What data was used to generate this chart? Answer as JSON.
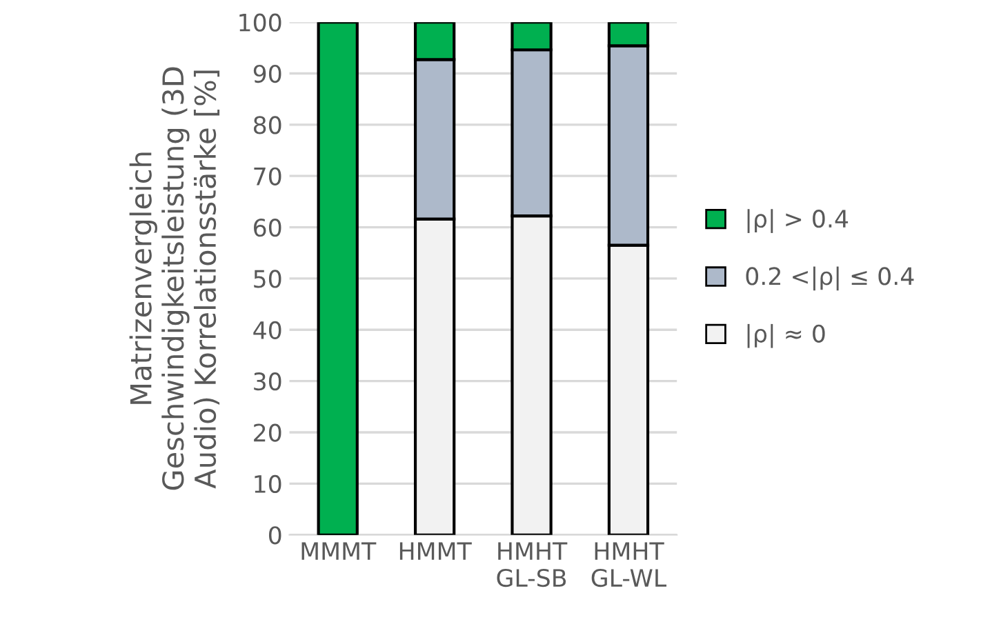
{
  "chart_data": {
    "type": "bar",
    "stacked": true,
    "ylabel": "Matrizenvergleich\nGeschwindigkeitsleistung (3D\nAudio) Korrelationsstärke [%]",
    "categories": [
      "MMMT",
      "HMMT",
      "HMHT\nGL-SB",
      "HMHT\nGL-WL"
    ],
    "series": [
      {
        "name": "|ρ| ≈ 0",
        "color": "#f2f2f2",
        "values": [
          0,
          61.6,
          62.2,
          56.5
        ]
      },
      {
        "name": "0.2 <|ρ| ≤ 0.4",
        "color": "#adb9ca",
        "values": [
          0,
          31.1,
          32.4,
          38.9
        ]
      },
      {
        "name": "|ρ| > 0.4",
        "color": "#00b050",
        "values": [
          100,
          7.3,
          5.4,
          4.6
        ]
      }
    ],
    "ylim": [
      0,
      100
    ],
    "yticks": [
      0,
      10,
      20,
      30,
      40,
      50,
      60,
      70,
      80,
      90,
      100
    ],
    "grid": "y",
    "legend": "right"
  }
}
